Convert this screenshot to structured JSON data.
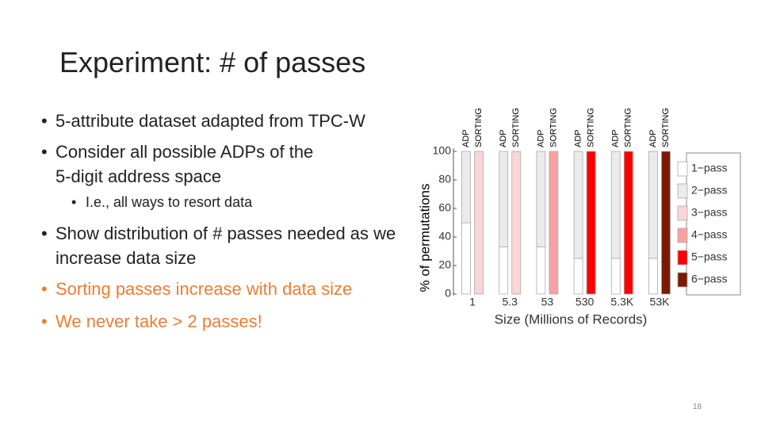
{
  "title": "Experiment: # of passes",
  "bullets": [
    "5-attribute dataset adapted from TPC-W",
    "Consider all possible ADPs of the 5-digit address space",
    "I.e., all ways to resort data",
    "Show distribution of # passes needed as we increase data size",
    "Sorting passes increase with data size",
    "We never take > 2 passes!"
  ],
  "page_number": "18",
  "chart_data": {
    "type": "stacked-bar-pairs",
    "categories": [
      "1",
      "5.3",
      "53",
      "530",
      "5.3K",
      "53K"
    ],
    "bar_names": [
      "ADP",
      "SORTING"
    ],
    "xlabel": "Size (Millions of Records)",
    "ylabel": "% of permutations",
    "ylim": [
      0,
      100
    ],
    "yticks": [
      0,
      20,
      40,
      60,
      80,
      100
    ],
    "series": [
      {
        "name": "1−pass",
        "color": "#ffffff",
        "adp": [
          50,
          33,
          33,
          25,
          25,
          25
        ],
        "sorting": [
          0,
          0,
          0,
          0,
          0,
          0
        ]
      },
      {
        "name": "2−pass",
        "color": "#ebebeb",
        "adp": [
          50,
          67,
          67,
          75,
          75,
          75
        ],
        "sorting": [
          0,
          0,
          0,
          0,
          0,
          0
        ]
      },
      {
        "name": "3−pass",
        "color": "#fcd5d5",
        "adp": [
          0,
          0,
          0,
          0,
          0,
          0
        ],
        "sorting": [
          100,
          100,
          0,
          0,
          0,
          0
        ]
      },
      {
        "name": "4−pass",
        "color": "#f7a1a1",
        "adp": [
          0,
          0,
          0,
          0,
          0,
          0
        ],
        "sorting": [
          0,
          0,
          100,
          0,
          0,
          0
        ]
      },
      {
        "name": "5−pass",
        "color": "#ff0000",
        "adp": [
          0,
          0,
          0,
          0,
          0,
          0
        ],
        "sorting": [
          0,
          0,
          0,
          100,
          100,
          0
        ]
      },
      {
        "name": "6−pass",
        "color": "#7a1a00",
        "adp": [
          0,
          0,
          0,
          0,
          0,
          0
        ],
        "sorting": [
          0,
          0,
          0,
          0,
          0,
          100
        ]
      }
    ]
  }
}
